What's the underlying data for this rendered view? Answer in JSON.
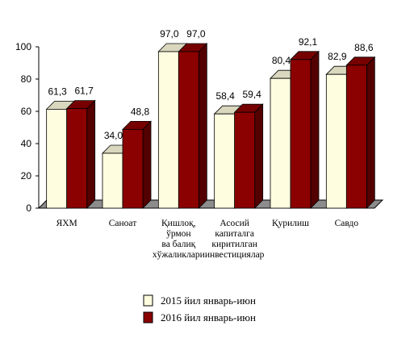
{
  "chart_data": {
    "type": "bar",
    "title": "",
    "xlabel": "",
    "ylabel": "",
    "ylim": [
      0,
      100
    ],
    "yticks": [
      0,
      20,
      40,
      60,
      80,
      100
    ],
    "grid": false,
    "legend_position": "bottom",
    "categories": [
      [
        "ЯХМ"
      ],
      [
        "Саноат"
      ],
      [
        "Қишлоқ,",
        "ўрмон",
        "ва балиқ",
        "хўжаликлари"
      ],
      [
        "Асосий",
        "капиталга",
        "киритилган",
        "инвестициялар"
      ],
      [
        "Қурилиш"
      ],
      [
        "Савдо"
      ]
    ],
    "series": [
      {
        "name": "2015 йил январь-июн",
        "color": "#fffde0",
        "values": [
          61.3,
          34.0,
          97.0,
          58.4,
          80.4,
          82.9
        ],
        "labels": [
          "61,3",
          "34,0",
          "97,0",
          "58,4",
          "80,4",
          "82,9"
        ]
      },
      {
        "name": "2016 йил январь-июн",
        "color": "#8b0000",
        "values": [
          61.7,
          48.8,
          97.0,
          59.4,
          92.1,
          88.6
        ],
        "labels": [
          "61,7",
          "48,8",
          "97,0",
          "59,4",
          "92,1",
          "88,6"
        ]
      }
    ]
  }
}
